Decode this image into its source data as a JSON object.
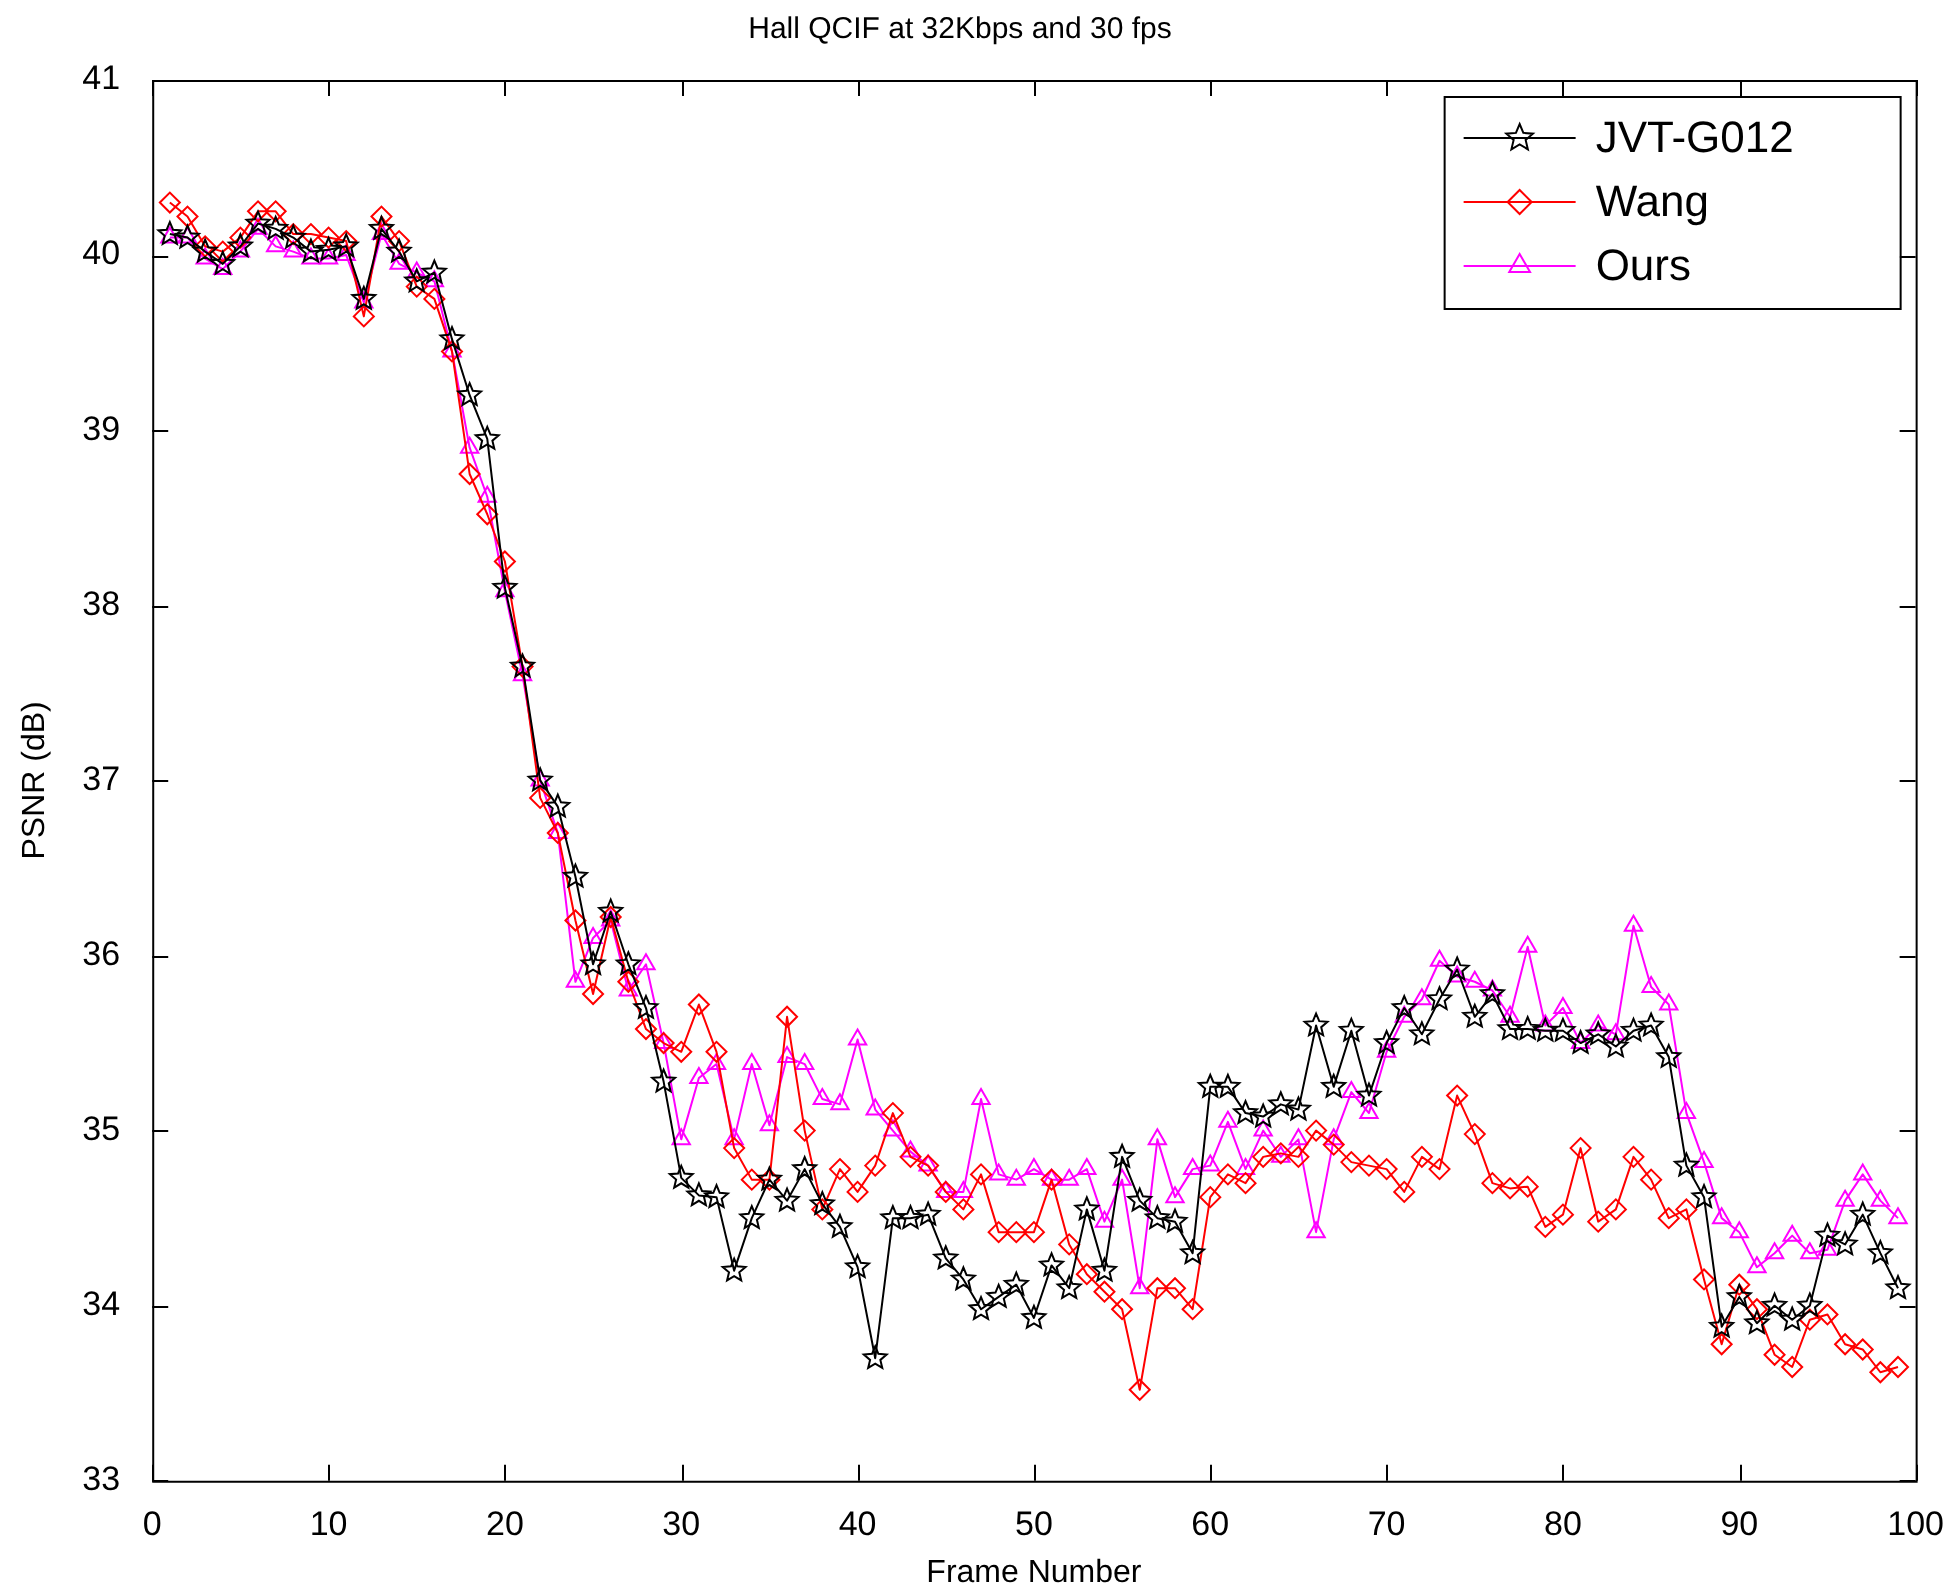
{
  "chart_data": {
    "type": "line",
    "title": "Hall QCIF at 32Kbps and 30 fps",
    "xlabel": "Frame Number",
    "ylabel": "PSNR (dB)",
    "x": [
      1,
      2,
      3,
      4,
      5,
      6,
      7,
      8,
      9,
      10,
      11,
      12,
      13,
      14,
      15,
      16,
      17,
      18,
      19,
      20,
      21,
      22,
      23,
      24,
      25,
      26,
      27,
      28,
      29,
      30,
      31,
      32,
      33,
      34,
      35,
      36,
      37,
      38,
      39,
      40,
      41,
      42,
      43,
      44,
      45,
      46,
      47,
      48,
      49,
      50,
      51,
      52,
      53,
      54,
      55,
      56,
      57,
      58,
      59,
      60,
      61,
      62,
      63,
      64,
      65,
      66,
      67,
      68,
      69,
      70,
      71,
      72,
      73,
      74,
      75,
      76,
      77,
      78,
      79,
      80,
      81,
      82,
      83,
      84,
      85,
      86,
      87,
      88,
      89,
      90,
      91,
      92,
      93,
      94,
      95,
      96,
      97,
      98,
      99
    ],
    "series": [
      {
        "name": "JVT-G012",
        "color": "#000000",
        "marker": "star",
        "values": [
          40.12,
          40.1,
          40.02,
          39.95,
          40.05,
          40.18,
          40.15,
          40.1,
          40.02,
          40.03,
          40.05,
          39.75,
          40.15,
          40.02,
          39.85,
          39.9,
          39.52,
          39.2,
          38.95,
          38.1,
          37.65,
          37.0,
          36.85,
          36.45,
          35.95,
          36.25,
          35.95,
          35.7,
          35.28,
          34.73,
          34.63,
          34.62,
          34.2,
          34.5,
          34.72,
          34.6,
          34.78,
          34.58,
          34.45,
          34.22,
          33.7,
          34.5,
          34.5,
          34.52,
          34.27,
          34.15,
          33.98,
          34.05,
          34.12,
          33.93,
          34.23,
          34.1,
          34.55,
          34.2,
          34.85,
          34.6,
          34.5,
          34.48,
          34.3,
          35.25,
          35.25,
          35.1,
          35.08,
          35.15,
          35.12,
          35.6,
          35.25,
          35.57,
          35.2,
          35.5,
          35.7,
          35.55,
          35.75,
          35.92,
          35.65,
          35.78,
          35.58,
          35.58,
          35.57,
          35.57,
          35.5,
          35.55,
          35.48,
          35.57,
          35.6,
          35.42,
          34.8,
          34.62,
          33.88,
          34.05,
          33.9,
          34.0,
          33.92,
          34.0,
          34.4,
          34.35,
          34.52,
          34.3,
          34.1
        ]
      },
      {
        "name": "Wang",
        "color": "#ff0000",
        "marker": "diamond",
        "values": [
          40.3,
          40.22,
          40.05,
          40.02,
          40.1,
          40.25,
          40.25,
          40.12,
          40.12,
          40.1,
          40.08,
          39.65,
          40.22,
          40.08,
          39.82,
          39.75,
          39.45,
          38.75,
          38.52,
          38.25,
          37.65,
          36.9,
          36.7,
          36.2,
          35.78,
          36.22,
          35.85,
          35.58,
          35.5,
          35.45,
          35.72,
          35.45,
          34.9,
          34.72,
          34.72,
          35.65,
          35.0,
          34.55,
          34.78,
          34.65,
          34.8,
          35.1,
          34.85,
          34.8,
          34.65,
          34.55,
          34.75,
          34.42,
          34.42,
          34.42,
          34.72,
          34.35,
          34.18,
          34.08,
          33.98,
          33.52,
          34.1,
          34.1,
          33.98,
          34.62,
          34.75,
          34.7,
          34.85,
          34.87,
          34.85,
          35.0,
          34.92,
          34.82,
          34.8,
          34.78,
          34.65,
          34.85,
          34.78,
          35.2,
          34.98,
          34.7,
          34.67,
          34.68,
          34.45,
          34.52,
          34.9,
          34.48,
          34.55,
          34.85,
          34.72,
          34.5,
          34.55,
          34.15,
          33.78,
          34.12,
          33.98,
          33.72,
          33.65,
          33.92,
          33.95,
          33.78,
          33.75,
          33.62,
          33.65
        ]
      },
      {
        "name": "Ours",
        "color": "#ff00ff",
        "marker": "triangle",
        "values": [
          40.1,
          40.1,
          39.98,
          39.92,
          40.02,
          40.15,
          40.05,
          40.02,
          39.98,
          39.98,
          40.0,
          39.73,
          40.12,
          39.95,
          39.9,
          39.85,
          39.45,
          38.9,
          38.62,
          38.08,
          37.6,
          37.0,
          36.7,
          35.85,
          36.1,
          36.2,
          35.8,
          35.95,
          35.5,
          34.95,
          35.3,
          35.38,
          34.95,
          35.38,
          35.03,
          35.42,
          35.38,
          35.18,
          35.15,
          35.52,
          35.12,
          35.0,
          34.88,
          34.8,
          34.65,
          34.65,
          35.18,
          34.75,
          34.72,
          34.78,
          34.72,
          34.72,
          34.78,
          34.48,
          34.72,
          34.1,
          34.95,
          34.62,
          34.78,
          34.8,
          35.05,
          34.78,
          35.0,
          34.85,
          34.95,
          34.42,
          34.95,
          35.22,
          35.1,
          35.45,
          35.65,
          35.75,
          35.97,
          35.88,
          35.85,
          35.8,
          35.65,
          36.05,
          35.6,
          35.7,
          35.5,
          35.6,
          35.55,
          36.17,
          35.82,
          35.72,
          35.1,
          34.82,
          34.5,
          34.42,
          34.22,
          34.3,
          34.4,
          34.3,
          34.32,
          34.6,
          34.75,
          34.6,
          34.5
        ]
      }
    ],
    "xlim": [
      0,
      100
    ],
    "xticks": [
      0,
      10,
      20,
      30,
      40,
      50,
      60,
      70,
      80,
      90,
      100
    ],
    "ylim": [
      33,
      41
    ],
    "yticks": [
      33,
      34,
      35,
      36,
      37,
      38,
      39,
      40,
      41
    ],
    "grid": false,
    "legend": "top right"
  }
}
